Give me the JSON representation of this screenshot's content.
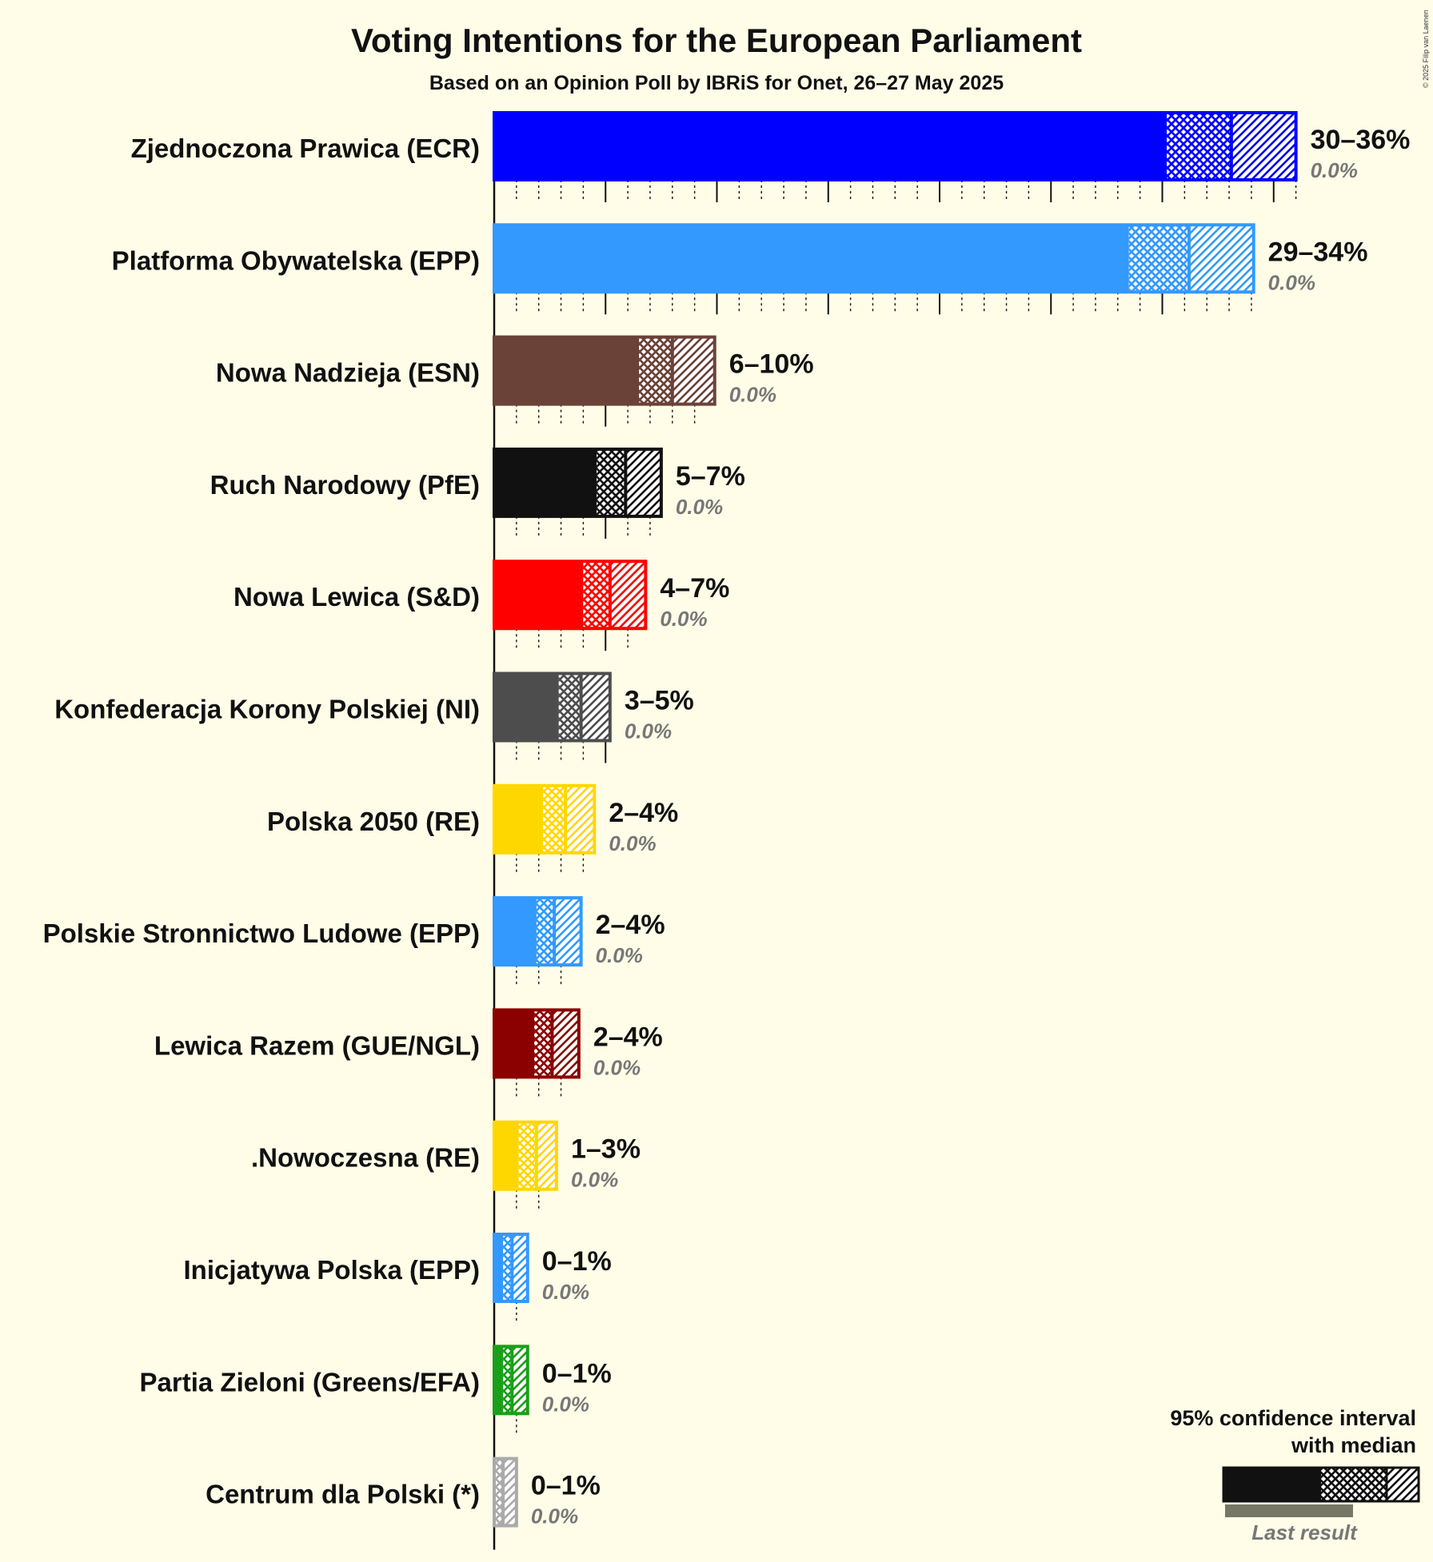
{
  "chart_data": {
    "type": "bar",
    "title": "Voting Intentions for the European Parliament",
    "subtitle": "Based on an Opinion Poll by IBRiS for Onet, 26–27 May 2025",
    "copyright": "© 2025 Filip van Laenen",
    "xlim": [
      0,
      36
    ],
    "series": [
      {
        "name": "Zjednoczona Prawica (ECR)",
        "color": "#0000FF",
        "low": 30.2,
        "median": 33.1,
        "high": 36.0,
        "tick_max": 36.0,
        "range_label": "30–36%",
        "last_result": "0.0%"
      },
      {
        "name": "Platforma Obywatelska (EPP)",
        "color": "#3399FF",
        "low": 28.5,
        "median": 31.2,
        "high": 34.1,
        "tick_max": 34.1,
        "range_label": "29–34%",
        "last_result": "0.0%"
      },
      {
        "name": "Nowa Nadzieja (ESN)",
        "color": "#6B4238",
        "low": 6.5,
        "median": 8.0,
        "high": 9.9,
        "tick_max": 9.9,
        "range_label": "6–10%",
        "last_result": "0.0%"
      },
      {
        "name": "Ruch Narodowy (PfE)",
        "color": "#111111",
        "low": 4.6,
        "median": 5.9,
        "high": 7.5,
        "tick_max": 7.5,
        "range_label": "5–7%",
        "last_result": "0.0%"
      },
      {
        "name": "Nowa Lewica (S&D)",
        "color": "#FF0000",
        "low": 4.0,
        "median": 5.2,
        "high": 6.8,
        "tick_max": 6.8,
        "range_label": "4–7%",
        "last_result": "0.0%"
      },
      {
        "name": "Konfederacja Korony Polskiej (NI)",
        "color": "#4D4D4D",
        "low": 2.9,
        "median": 3.9,
        "high": 5.2,
        "tick_max": 5.2,
        "range_label": "3–5%",
        "last_result": "0.0%"
      },
      {
        "name": "Polska 2050 (RE)",
        "color": "#FFD700",
        "low": 2.2,
        "median": 3.2,
        "high": 4.5,
        "tick_max": 4.0,
        "range_label": "2–4%",
        "last_result": "0.0%"
      },
      {
        "name": "Polskie Stronnictwo Ludowe (EPP)",
        "color": "#3399FF",
        "low": 1.9,
        "median": 2.7,
        "high": 3.9,
        "tick_max": 3.0,
        "range_label": "2–4%",
        "last_result": "0.0%"
      },
      {
        "name": "Lewica Razem (GUE/NGL)",
        "color": "#8B0000",
        "low": 1.8,
        "median": 2.6,
        "high": 3.8,
        "tick_max": 3.0,
        "range_label": "2–4%",
        "last_result": "0.0%"
      },
      {
        "name": ".Nowoczesna (RE)",
        "color": "#FFD700",
        "low": 1.1,
        "median": 1.9,
        "high": 2.8,
        "tick_max": 2.0,
        "range_label": "1–3%",
        "last_result": "0.0%"
      },
      {
        "name": "Inicjatywa Polska (EPP)",
        "color": "#3399FF",
        "low": 0.4,
        "median": 0.8,
        "high": 1.5,
        "tick_max": 1.0,
        "range_label": "0–1%",
        "last_result": "0.0%"
      },
      {
        "name": "Partia Zieloni (Greens/EFA)",
        "color": "#1A9F1A",
        "low": 0.4,
        "median": 0.8,
        "high": 1.5,
        "tick_max": 1.0,
        "range_label": "0–1%",
        "last_result": "0.0%"
      },
      {
        "name": "Centrum dla Polski (*)",
        "color": "#AAAAAA",
        "low": 0.0,
        "median": 0.4,
        "high": 1.0,
        "tick_max": 0.0,
        "range_label": "0–1%",
        "last_result": "0.0%"
      }
    ],
    "legend": {
      "line1": "95% confidence interval",
      "line2": "with median",
      "last_result": "Last result"
    }
  }
}
